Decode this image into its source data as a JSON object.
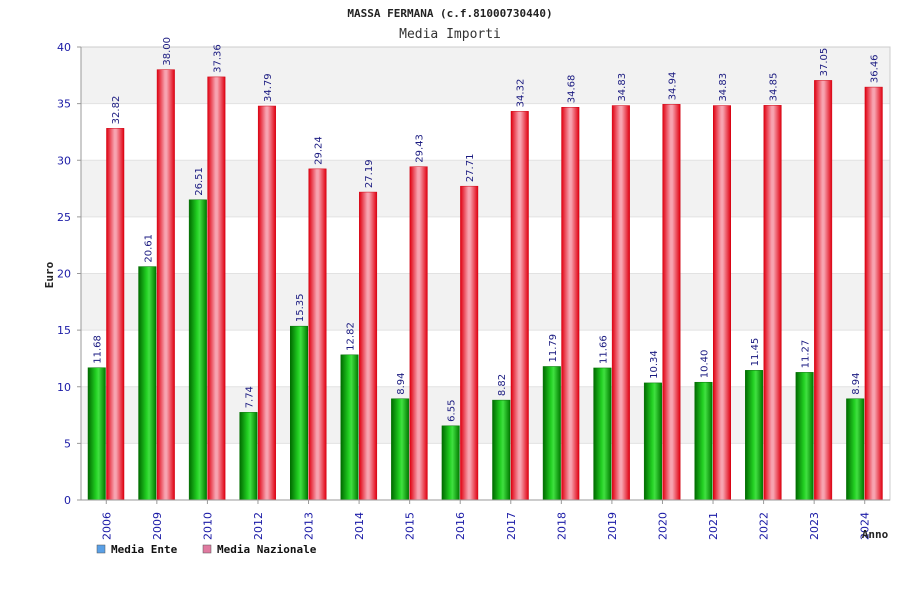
{
  "chart_data": {
    "type": "bar",
    "title": "MASSA FERMANA (c.f.81000730440)",
    "subtitle": "Media Importi",
    "xlabel": "Anno",
    "ylabel": "Euro",
    "ylim": [
      0,
      40
    ],
    "yticks": [
      0,
      5,
      10,
      15,
      20,
      25,
      30,
      35,
      40
    ],
    "grid": "horizontal bands",
    "legend_position": "bottom-left",
    "categories": [
      "2006",
      "2009",
      "2010",
      "2012",
      "2013",
      "2014",
      "2015",
      "2016",
      "2017",
      "2018",
      "2019",
      "2020",
      "2021",
      "2022",
      "2023",
      "2024"
    ],
    "series": [
      {
        "name": "Media Ente",
        "color": "#00b000",
        "legend_color": "#5aa0e6",
        "values": [
          11.68,
          20.61,
          26.51,
          7.74,
          15.35,
          12.82,
          8.94,
          6.55,
          8.82,
          11.79,
          11.66,
          10.34,
          10.4,
          11.45,
          11.27,
          8.94
        ],
        "labels": [
          "11.68",
          "20.61",
          "26.51",
          "7.74",
          "15.35",
          "12.82",
          "8.94",
          "6.55",
          "8.82",
          "11.79",
          "11.66",
          "10.34",
          "10.40",
          "11.45",
          "11.27",
          "8.94"
        ]
      },
      {
        "name": "Media Nazionale",
        "color": "#e0101a",
        "legend_color": "#e07aa0",
        "values": [
          32.82,
          38.0,
          37.36,
          34.79,
          29.24,
          27.19,
          29.43,
          27.71,
          34.32,
          34.68,
          34.83,
          34.94,
          34.83,
          34.85,
          37.05,
          36.46
        ],
        "labels": [
          "32.82",
          "38.00",
          "37.36",
          "34.79",
          "29.24",
          "27.19",
          "29.43",
          "27.71",
          "34.32",
          "34.68",
          "34.83",
          "34.94",
          "34.83",
          "34.85",
          "37.05",
          "36.46"
        ]
      }
    ]
  }
}
